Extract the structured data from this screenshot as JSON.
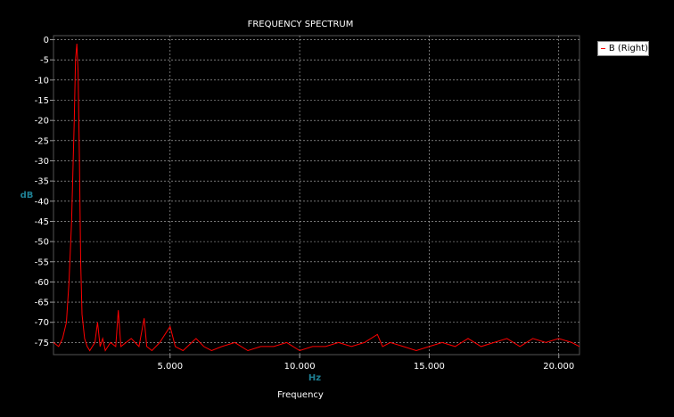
{
  "chart_data": {
    "type": "line",
    "title": "FREQUENCY SPECTRUM",
    "xlabel": "Frequency",
    "xunit": "Hz",
    "ylabel": "dB",
    "xlim": [
      500,
      20800
    ],
    "ylim": [
      -78,
      1
    ],
    "xticks": [
      5000,
      10000,
      15000,
      20000
    ],
    "xtick_labels": [
      "5.000",
      "10.000",
      "15.000",
      "20.000"
    ],
    "yticks": [
      0,
      -5,
      -10,
      -15,
      -20,
      -25,
      -30,
      -35,
      -40,
      -45,
      -50,
      -55,
      -60,
      -65,
      -70,
      -75
    ],
    "grid": true,
    "legend_placement": "top-right",
    "colors": {
      "background": "#000000",
      "series": "#ff0000",
      "axis_label": "#1e7f93",
      "text": "#ffffff",
      "grid": "#bbbbbb"
    },
    "series": [
      {
        "name": "B (Right)",
        "x": [
          500,
          700,
          850,
          1000,
          1100,
          1200,
          1300,
          1350,
          1400,
          1450,
          1500,
          1550,
          1600,
          1700,
          1800,
          1900,
          2000,
          2100,
          2200,
          2300,
          2400,
          2500,
          2700,
          2900,
          3000,
          3100,
          3300,
          3500,
          3800,
          4000,
          4100,
          4300,
          4600,
          5000,
          5200,
          5500,
          6000,
          6300,
          6600,
          7000,
          7500,
          8000,
          8500,
          9000,
          9500,
          10000,
          10500,
          11000,
          11500,
          12000,
          12500,
          13000,
          13200,
          13500,
          14000,
          14500,
          15000,
          15500,
          16000,
          16500,
          17000,
          17500,
          18000,
          18500,
          19000,
          19500,
          20000,
          20500,
          20800
        ],
        "y": [
          -75,
          -76,
          -74,
          -70,
          -60,
          -45,
          -20,
          -5,
          -1,
          -8,
          -30,
          -55,
          -68,
          -74,
          -76,
          -77,
          -76,
          -75,
          -70,
          -76,
          -74,
          -77,
          -75,
          -76,
          -67,
          -76,
          -75,
          -74,
          -76,
          -69,
          -76,
          -77,
          -75,
          -71,
          -76,
          -77,
          -74,
          -76,
          -77,
          -76,
          -75,
          -77,
          -76,
          -76,
          -75,
          -77,
          -76,
          -76,
          -75,
          -76,
          -75,
          -73,
          -76,
          -75,
          -76,
          -77,
          -76,
          -75,
          -76,
          -74,
          -76,
          -75,
          -74,
          -76,
          -74,
          -75,
          -74,
          -75,
          -76
        ]
      }
    ]
  }
}
